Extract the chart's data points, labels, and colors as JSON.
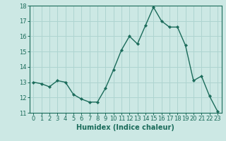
{
  "x": [
    0,
    1,
    2,
    3,
    4,
    5,
    6,
    7,
    8,
    9,
    10,
    11,
    12,
    13,
    14,
    15,
    16,
    17,
    18,
    19,
    20,
    21,
    22,
    23
  ],
  "y": [
    13.0,
    12.9,
    12.7,
    13.1,
    13.0,
    12.2,
    11.9,
    11.7,
    11.7,
    12.6,
    13.8,
    15.1,
    16.0,
    15.5,
    16.7,
    17.9,
    17.0,
    16.6,
    16.6,
    15.4,
    13.1,
    13.4,
    12.1,
    11.1
  ],
  "line_color": "#1a6b5a",
  "marker": "D",
  "marker_size": 2.2,
  "linewidth": 1.0,
  "bg_color": "#cce8e4",
  "grid_color": "#aed4d0",
  "axis_color": "#1a6b5a",
  "xlabel": "Humidex (Indice chaleur)",
  "xlabel_fontsize": 7,
  "tick_fontsize": 6,
  "ylim": [
    11,
    18
  ],
  "xlim_min": -0.5,
  "xlim_max": 23.5,
  "yticks": [
    11,
    12,
    13,
    14,
    15,
    16,
    17,
    18
  ],
  "xticks": [
    0,
    1,
    2,
    3,
    4,
    5,
    6,
    7,
    8,
    9,
    10,
    11,
    12,
    13,
    14,
    15,
    16,
    17,
    18,
    19,
    20,
    21,
    22,
    23
  ]
}
